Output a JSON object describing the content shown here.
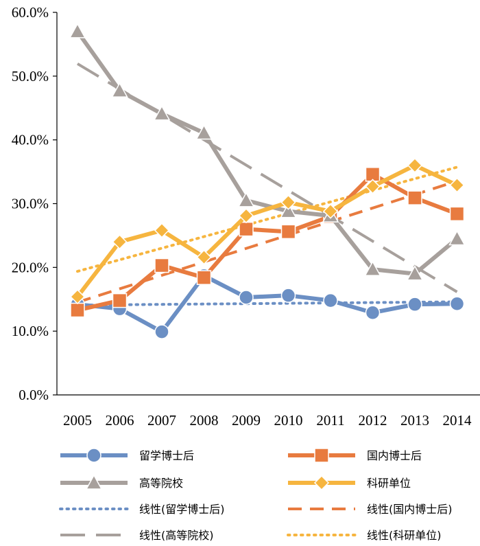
{
  "chart_data": {
    "type": "line",
    "categories": [
      "2005",
      "2006",
      "2007",
      "2008",
      "2009",
      "2010",
      "2011",
      "2012",
      "2013",
      "2014"
    ],
    "ylim": [
      0,
      60
    ],
    "y_ticks": [
      0,
      10,
      20,
      30,
      40,
      50,
      60
    ],
    "y_tick_labels": [
      "0.0%",
      "10.0%",
      "20.0%",
      "30.0%",
      "40.0%",
      "50.0%",
      "60.0%"
    ],
    "grid": false,
    "legend_position": "bottom",
    "series": [
      {
        "name": "留学博士后",
        "values": [
          14.2,
          13.5,
          9.9,
          18.7,
          15.3,
          15.6,
          14.8,
          12.9,
          14.2,
          14.3
        ],
        "color": "#6b8fc4",
        "marker": "circle"
      },
      {
        "name": "国内博士后",
        "values": [
          13.3,
          14.8,
          20.3,
          18.4,
          26.0,
          25.6,
          28.0,
          34.6,
          30.9,
          28.4
        ],
        "color": "#e87b3f",
        "marker": "square"
      },
      {
        "name": "高等院校",
        "values": [
          57.0,
          47.7,
          44.1,
          41.1,
          30.5,
          28.8,
          28.1,
          19.7,
          19.0,
          24.5
        ],
        "color": "#a7a09c",
        "marker": "triangle"
      },
      {
        "name": "科研单位",
        "values": [
          15.4,
          24.0,
          25.8,
          21.6,
          28.1,
          30.2,
          28.8,
          32.7,
          36.0,
          32.9
        ],
        "color": "#f6b53f",
        "marker": "diamond"
      }
    ],
    "trendlines": [
      {
        "name": "线性(留学博士后)",
        "of": "留学博士后",
        "dash": "dotted",
        "color": "#6b8fc4"
      },
      {
        "name": "线性(国内博士后)",
        "of": "国内博士后",
        "dash": "dashed",
        "color": "#e87b3f"
      },
      {
        "name": "线性(高等院校)",
        "of": "高等院校",
        "dash": "longdash",
        "color": "#a7a09c"
      },
      {
        "name": "线性(科研单位)",
        "of": "科研单位",
        "dash": "dotted",
        "color": "#f6b53f"
      }
    ]
  }
}
